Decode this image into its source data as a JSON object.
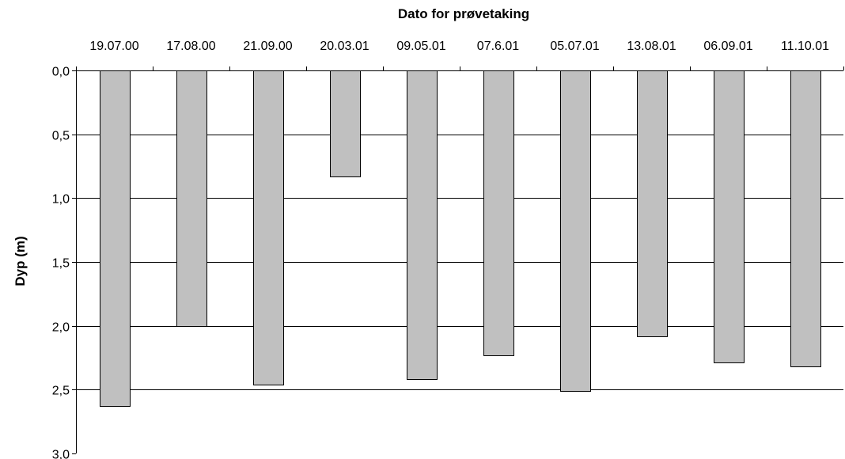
{
  "chart_data": {
    "type": "bar",
    "orientation": "vertical-down",
    "title": "",
    "xlabel": "Dato for prøvetaking",
    "ylabel": "Dyp (m)",
    "x_axis_position": "top",
    "y_axis_inverted": true,
    "categories": [
      "19.07.00",
      "17.08.00",
      "21.09.00",
      "20.03.01",
      "09.05.01",
      "07.6.01",
      "05.07.01",
      "13.08.01",
      "06.09.01",
      "11.10.01"
    ],
    "values": [
      2.63,
      2.0,
      2.46,
      0.83,
      2.42,
      2.23,
      2.51,
      2.08,
      2.29,
      2.32
    ],
    "ylim": [
      0,
      3.0
    ],
    "y_ticks": [
      0,
      0.5,
      1.0,
      1.5,
      2.0,
      2.5,
      3.0
    ],
    "y_tick_labels": [
      "0,0",
      "0,5",
      "1,0",
      "1,5",
      "2,0",
      "2,5",
      "3,0"
    ],
    "grid": true,
    "legend": "none",
    "bar_color": "#c0c0c0",
    "bar_edge_color": "#000000"
  }
}
